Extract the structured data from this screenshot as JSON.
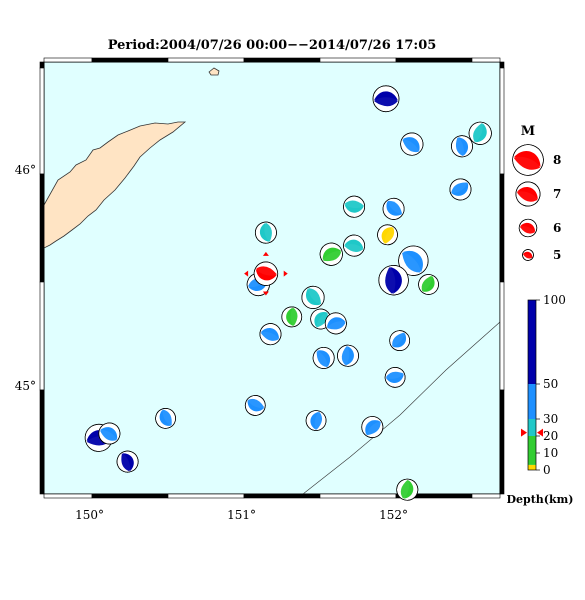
{
  "title": "Period:2004/07/26 00:00−−2014/07/26 17:05",
  "map": {
    "lon_range": [
      149.7,
      152.7
    ],
    "lat_range": [
      44.5,
      46.5
    ],
    "lon_ticks": [
      {
        "value": 150,
        "label": "150°"
      },
      {
        "value": 151,
        "label": "151°"
      },
      {
        "value": 152,
        "label": "152°"
      }
    ],
    "lat_ticks": [
      {
        "value": 46,
        "label": "46°"
      },
      {
        "value": 45,
        "label": "45°"
      }
    ],
    "colors": {
      "sea": "#e0ffff",
      "land": "#ffe4c4",
      "latest_marker": "#ff0000"
    }
  },
  "events": [
    {
      "lon": 151.95,
      "lat": 46.33,
      "mag": 5.5,
      "depth": 80
    },
    {
      "lon": 152.12,
      "lat": 46.12,
      "mag": 5.2,
      "depth": 35
    },
    {
      "lon": 152.45,
      "lat": 46.11,
      "mag": 5.1,
      "depth": 35
    },
    {
      "lon": 152.57,
      "lat": 46.17,
      "mag": 5.2,
      "depth": 25
    },
    {
      "lon": 152.44,
      "lat": 45.91,
      "mag": 5.1,
      "depth": 35
    },
    {
      "lon": 151.74,
      "lat": 45.83,
      "mag": 5.1,
      "depth": 25
    },
    {
      "lon": 152.0,
      "lat": 45.82,
      "mag": 5.1,
      "depth": 35
    },
    {
      "lon": 151.16,
      "lat": 45.71,
      "mag": 5.1,
      "depth": 25
    },
    {
      "lon": 151.96,
      "lat": 45.7,
      "mag": 5.0,
      "depth": 2
    },
    {
      "lon": 151.59,
      "lat": 45.61,
      "mag": 5.2,
      "depth": 3
    },
    {
      "lon": 151.74,
      "lat": 45.65,
      "mag": 5.1,
      "depth": 25
    },
    {
      "lon": 152.13,
      "lat": 45.58,
      "mag": 5.8,
      "depth": 35
    },
    {
      "lon": 152.0,
      "lat": 45.49,
      "mag": 5.8,
      "depth": 80
    },
    {
      "lon": 152.23,
      "lat": 45.47,
      "mag": 5.0,
      "depth": 15
    },
    {
      "lon": 151.11,
      "lat": 45.47,
      "mag": 5.2,
      "depth": 35
    },
    {
      "lon": 151.16,
      "lat": 45.52,
      "mag": 5.3,
      "depth": 22,
      "latest": true
    },
    {
      "lon": 151.47,
      "lat": 45.41,
      "mag": 5.2,
      "depth": 25
    },
    {
      "lon": 151.33,
      "lat": 45.32,
      "mag": 5.0,
      "depth": 15
    },
    {
      "lon": 151.52,
      "lat": 45.31,
      "mag": 5.0,
      "depth": 25
    },
    {
      "lon": 151.62,
      "lat": 45.29,
      "mag": 5.1,
      "depth": 35
    },
    {
      "lon": 151.19,
      "lat": 45.24,
      "mag": 5.1,
      "depth": 35
    },
    {
      "lon": 151.54,
      "lat": 45.13,
      "mag": 5.1,
      "depth": 35
    },
    {
      "lon": 151.7,
      "lat": 45.14,
      "mag": 5.1,
      "depth": 35
    },
    {
      "lon": 152.04,
      "lat": 45.21,
      "mag": 5.0,
      "depth": 35
    },
    {
      "lon": 152.01,
      "lat": 45.04,
      "mag": 5.0,
      "depth": 35
    },
    {
      "lon": 151.09,
      "lat": 44.91,
      "mag": 5.0,
      "depth": 35
    },
    {
      "lon": 150.5,
      "lat": 44.85,
      "mag": 5.0,
      "depth": 35
    },
    {
      "lon": 151.49,
      "lat": 44.84,
      "mag": 5.0,
      "depth": 35
    },
    {
      "lon": 151.86,
      "lat": 44.81,
      "mag": 5.1,
      "depth": 35
    },
    {
      "lon": 150.06,
      "lat": 44.76,
      "mag": 5.6,
      "depth": 80
    },
    {
      "lon": 150.13,
      "lat": 44.78,
      "mag": 5.1,
      "depth": 35
    },
    {
      "lon": 150.25,
      "lat": 44.65,
      "mag": 5.1,
      "depth": 80
    },
    {
      "lon": 152.09,
      "lat": 44.52,
      "mag": 5.1,
      "depth": 15
    }
  ],
  "magnitude_legend": {
    "title": "M",
    "entries": [
      {
        "label": "8",
        "mag": 8
      },
      {
        "label": "7",
        "mag": 7
      },
      {
        "label": "6",
        "mag": 6
      },
      {
        "label": "5",
        "mag": 5
      }
    ]
  },
  "depth_scale": {
    "title": "Depth(km)",
    "range": [
      0,
      100
    ],
    "ticks": [
      {
        "value": 100,
        "label": "100"
      },
      {
        "value": 50,
        "label": "50"
      },
      {
        "value": 30,
        "label": "30"
      },
      {
        "value": 20,
        "label": "20"
      },
      {
        "value": 10,
        "label": "10"
      },
      {
        "value": 0,
        "label": "0"
      }
    ],
    "bands": [
      {
        "from": 0,
        "to": 3,
        "color": "#ffd700"
      },
      {
        "from": 3,
        "to": 20,
        "color": "#32cd32"
      },
      {
        "from": 20,
        "to": 30,
        "color": "#20c8c8"
      },
      {
        "from": 30,
        "to": 50,
        "color": "#1e90ff"
      },
      {
        "from": 50,
        "to": 100,
        "color": "#0000aa"
      }
    ],
    "marker_depth": 22
  }
}
